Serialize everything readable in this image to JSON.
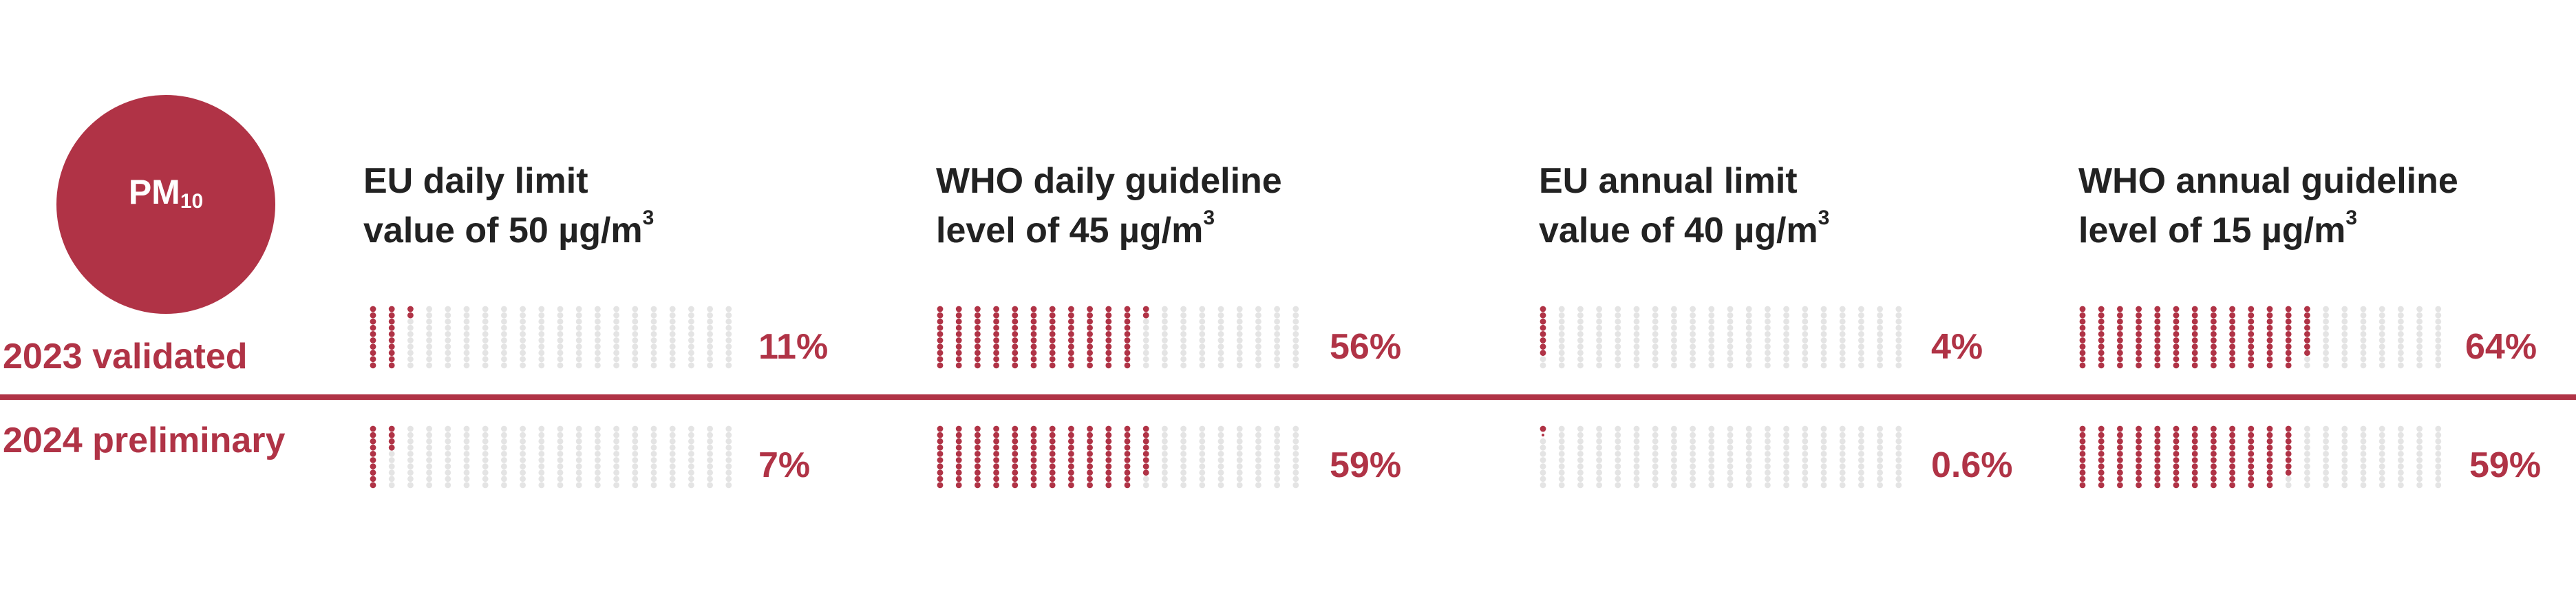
{
  "badge": {
    "main": "PM",
    "sub": "10"
  },
  "row_labels": [
    "2023 validated",
    "2024 preliminary"
  ],
  "colors": {
    "accent": "#b03346",
    "empty_dot": "#e4e4e4",
    "heading": "#222222"
  },
  "chart_data": {
    "type": "waffle",
    "unit": "%",
    "categories": [
      {
        "line1": "EU daily limit",
        "line2_prefix": "value of 50 µg/m",
        "superscript": "3"
      },
      {
        "line1": "WHO daily guideline",
        "line2_prefix": "level of 45 µg/m",
        "superscript": "3"
      },
      {
        "line1": "EU annual limit",
        "line2_prefix": "value of 40 µg/m",
        "superscript": "3"
      },
      {
        "line1": "WHO annual guideline",
        "line2_prefix": "level of 15 µg/m",
        "superscript": "3"
      }
    ],
    "series": [
      {
        "name": "2023 validated",
        "values": [
          11,
          56,
          4,
          64
        ],
        "labels": [
          "11%",
          "56%",
          "4%",
          "64%"
        ]
      },
      {
        "name": "2024 preliminary",
        "values": [
          7,
          59,
          0.6,
          59
        ],
        "labels": [
          "7%",
          "59%",
          "0.6%",
          "59%"
        ]
      }
    ]
  }
}
